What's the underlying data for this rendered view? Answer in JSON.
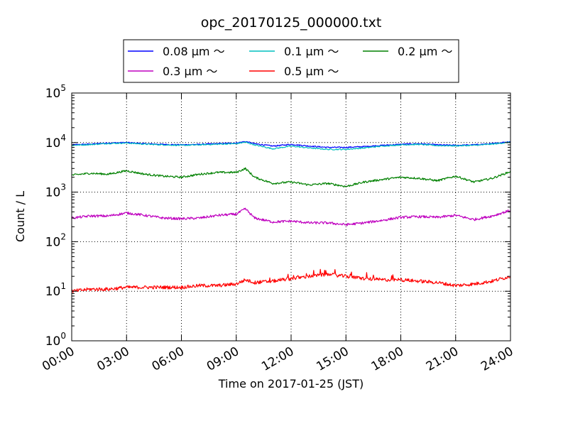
{
  "chart_data": {
    "type": "line",
    "title": "opc_20170125_000000.txt",
    "xlabel": "Time on 2017-01-25 (JST)",
    "ylabel": "Count / L",
    "xlim": [
      "00:00",
      "24:00"
    ],
    "ylim": [
      1,
      100000
    ],
    "yscale": "log",
    "grid": true,
    "legend_position": "top",
    "x_ticks": [
      "00:00",
      "03:00",
      "06:00",
      "09:00",
      "12:00",
      "15:00",
      "18:00",
      "21:00",
      "24:00"
    ],
    "y_ticks": [
      {
        "base": "10",
        "exp": "0"
      },
      {
        "base": "10",
        "exp": "1"
      },
      {
        "base": "10",
        "exp": "2"
      },
      {
        "base": "10",
        "exp": "3"
      },
      {
        "base": "10",
        "exp": "4"
      },
      {
        "base": "10",
        "exp": "5"
      }
    ],
    "x": [
      "00:00",
      "01:00",
      "02:00",
      "03:00",
      "04:00",
      "05:00",
      "06:00",
      "07:00",
      "08:00",
      "09:00",
      "09:30",
      "10:00",
      "11:00",
      "12:00",
      "13:00",
      "14:00",
      "15:00",
      "16:00",
      "17:00",
      "18:00",
      "19:00",
      "20:00",
      "21:00",
      "22:00",
      "23:00",
      "24:00"
    ],
    "series": [
      {
        "name": "0.08 μm ～",
        "color": "#0000ff",
        "values": [
          9000,
          9300,
          9800,
          10000,
          9500,
          9200,
          9000,
          9200,
          9500,
          9800,
          10500,
          9500,
          8500,
          9200,
          8500,
          8000,
          8000,
          8300,
          8800,
          9200,
          9500,
          9000,
          8800,
          9000,
          9500,
          10500
        ]
      },
      {
        "name": "0.1 μm ～",
        "color": "#00bfbf",
        "values": [
          8800,
          9100,
          9600,
          9800,
          9300,
          9000,
          8800,
          9000,
          9300,
          9500,
          10200,
          9000,
          7500,
          8500,
          7800,
          7300,
          7300,
          7800,
          8500,
          9000,
          9200,
          8700,
          8600,
          8800,
          9300,
          10200
        ]
      },
      {
        "name": "0.2 μm ～",
        "color": "#008000",
        "values": [
          2200,
          2400,
          2300,
          2700,
          2300,
          2100,
          2000,
          2300,
          2500,
          2500,
          3000,
          2000,
          1500,
          1600,
          1400,
          1500,
          1300,
          1600,
          1800,
          2000,
          1900,
          1700,
          2100,
          1600,
          1900,
          2600
        ]
      },
      {
        "name": "0.3 μm ～",
        "color": "#bf00bf",
        "values": [
          300,
          330,
          330,
          380,
          340,
          300,
          290,
          300,
          340,
          360,
          460,
          300,
          250,
          260,
          240,
          240,
          220,
          240,
          270,
          310,
          320,
          310,
          340,
          280,
          330,
          430
        ]
      },
      {
        "name": "0.5 μm ～",
        "color": "#ff0000",
        "values": [
          10,
          11,
          11,
          12,
          12,
          12,
          12,
          13,
          13,
          14,
          17,
          15,
          16,
          18,
          20,
          22,
          20,
          18,
          17,
          17,
          16,
          15,
          13,
          14,
          16,
          20
        ]
      }
    ]
  }
}
